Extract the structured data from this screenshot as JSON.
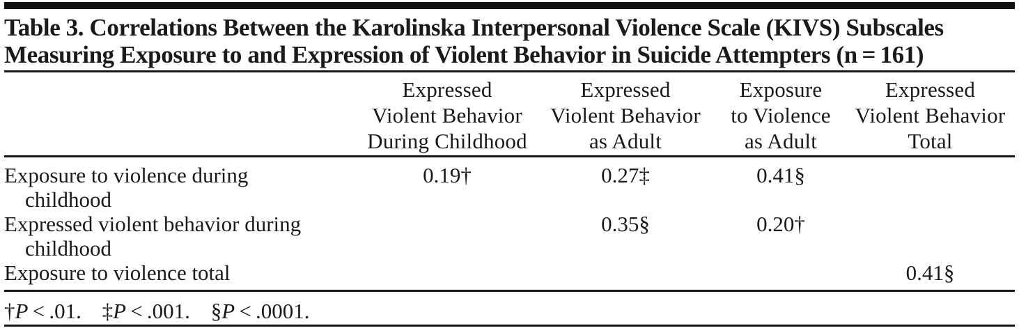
{
  "title": {
    "lines": [
      "Table 3. Correlations Between the Karolinska Interpersonal Violence Scale (KIVS) Subscales",
      "Measuring Exposure to and Expression of Violent Behavior in Suicide Attempters (n = 161)"
    ]
  },
  "table": {
    "headers": [
      {
        "lines": [
          "Expressed",
          "Violent Behavior",
          "During Childhood"
        ]
      },
      {
        "lines": [
          "Expressed",
          "Violent Behavior",
          "as Adult"
        ]
      },
      {
        "lines": [
          "Exposure",
          "to Violence",
          "as Adult"
        ]
      },
      {
        "lines": [
          "Expressed",
          "Violent Behavior",
          "Total"
        ]
      }
    ],
    "rows": [
      {
        "label_lines": [
          "Exposure to violence during",
          "childhood"
        ],
        "values": [
          "0.19†",
          "0.27‡",
          "0.41§",
          ""
        ]
      },
      {
        "label_lines": [
          "Expressed violent behavior during",
          "childhood"
        ],
        "values": [
          "",
          "0.35§",
          "0.20†",
          ""
        ]
      },
      {
        "label_lines": [
          "Exposure to violence total"
        ],
        "values": [
          "",
          "",
          "",
          "0.41§"
        ]
      }
    ]
  },
  "footnotes": [
    {
      "marker": "†",
      "var": "P",
      "relation": " < .01."
    },
    {
      "marker": "‡",
      "var": "P",
      "relation": " < .001."
    },
    {
      "marker": "§",
      "var": "P",
      "relation": " < .0001."
    }
  ]
}
